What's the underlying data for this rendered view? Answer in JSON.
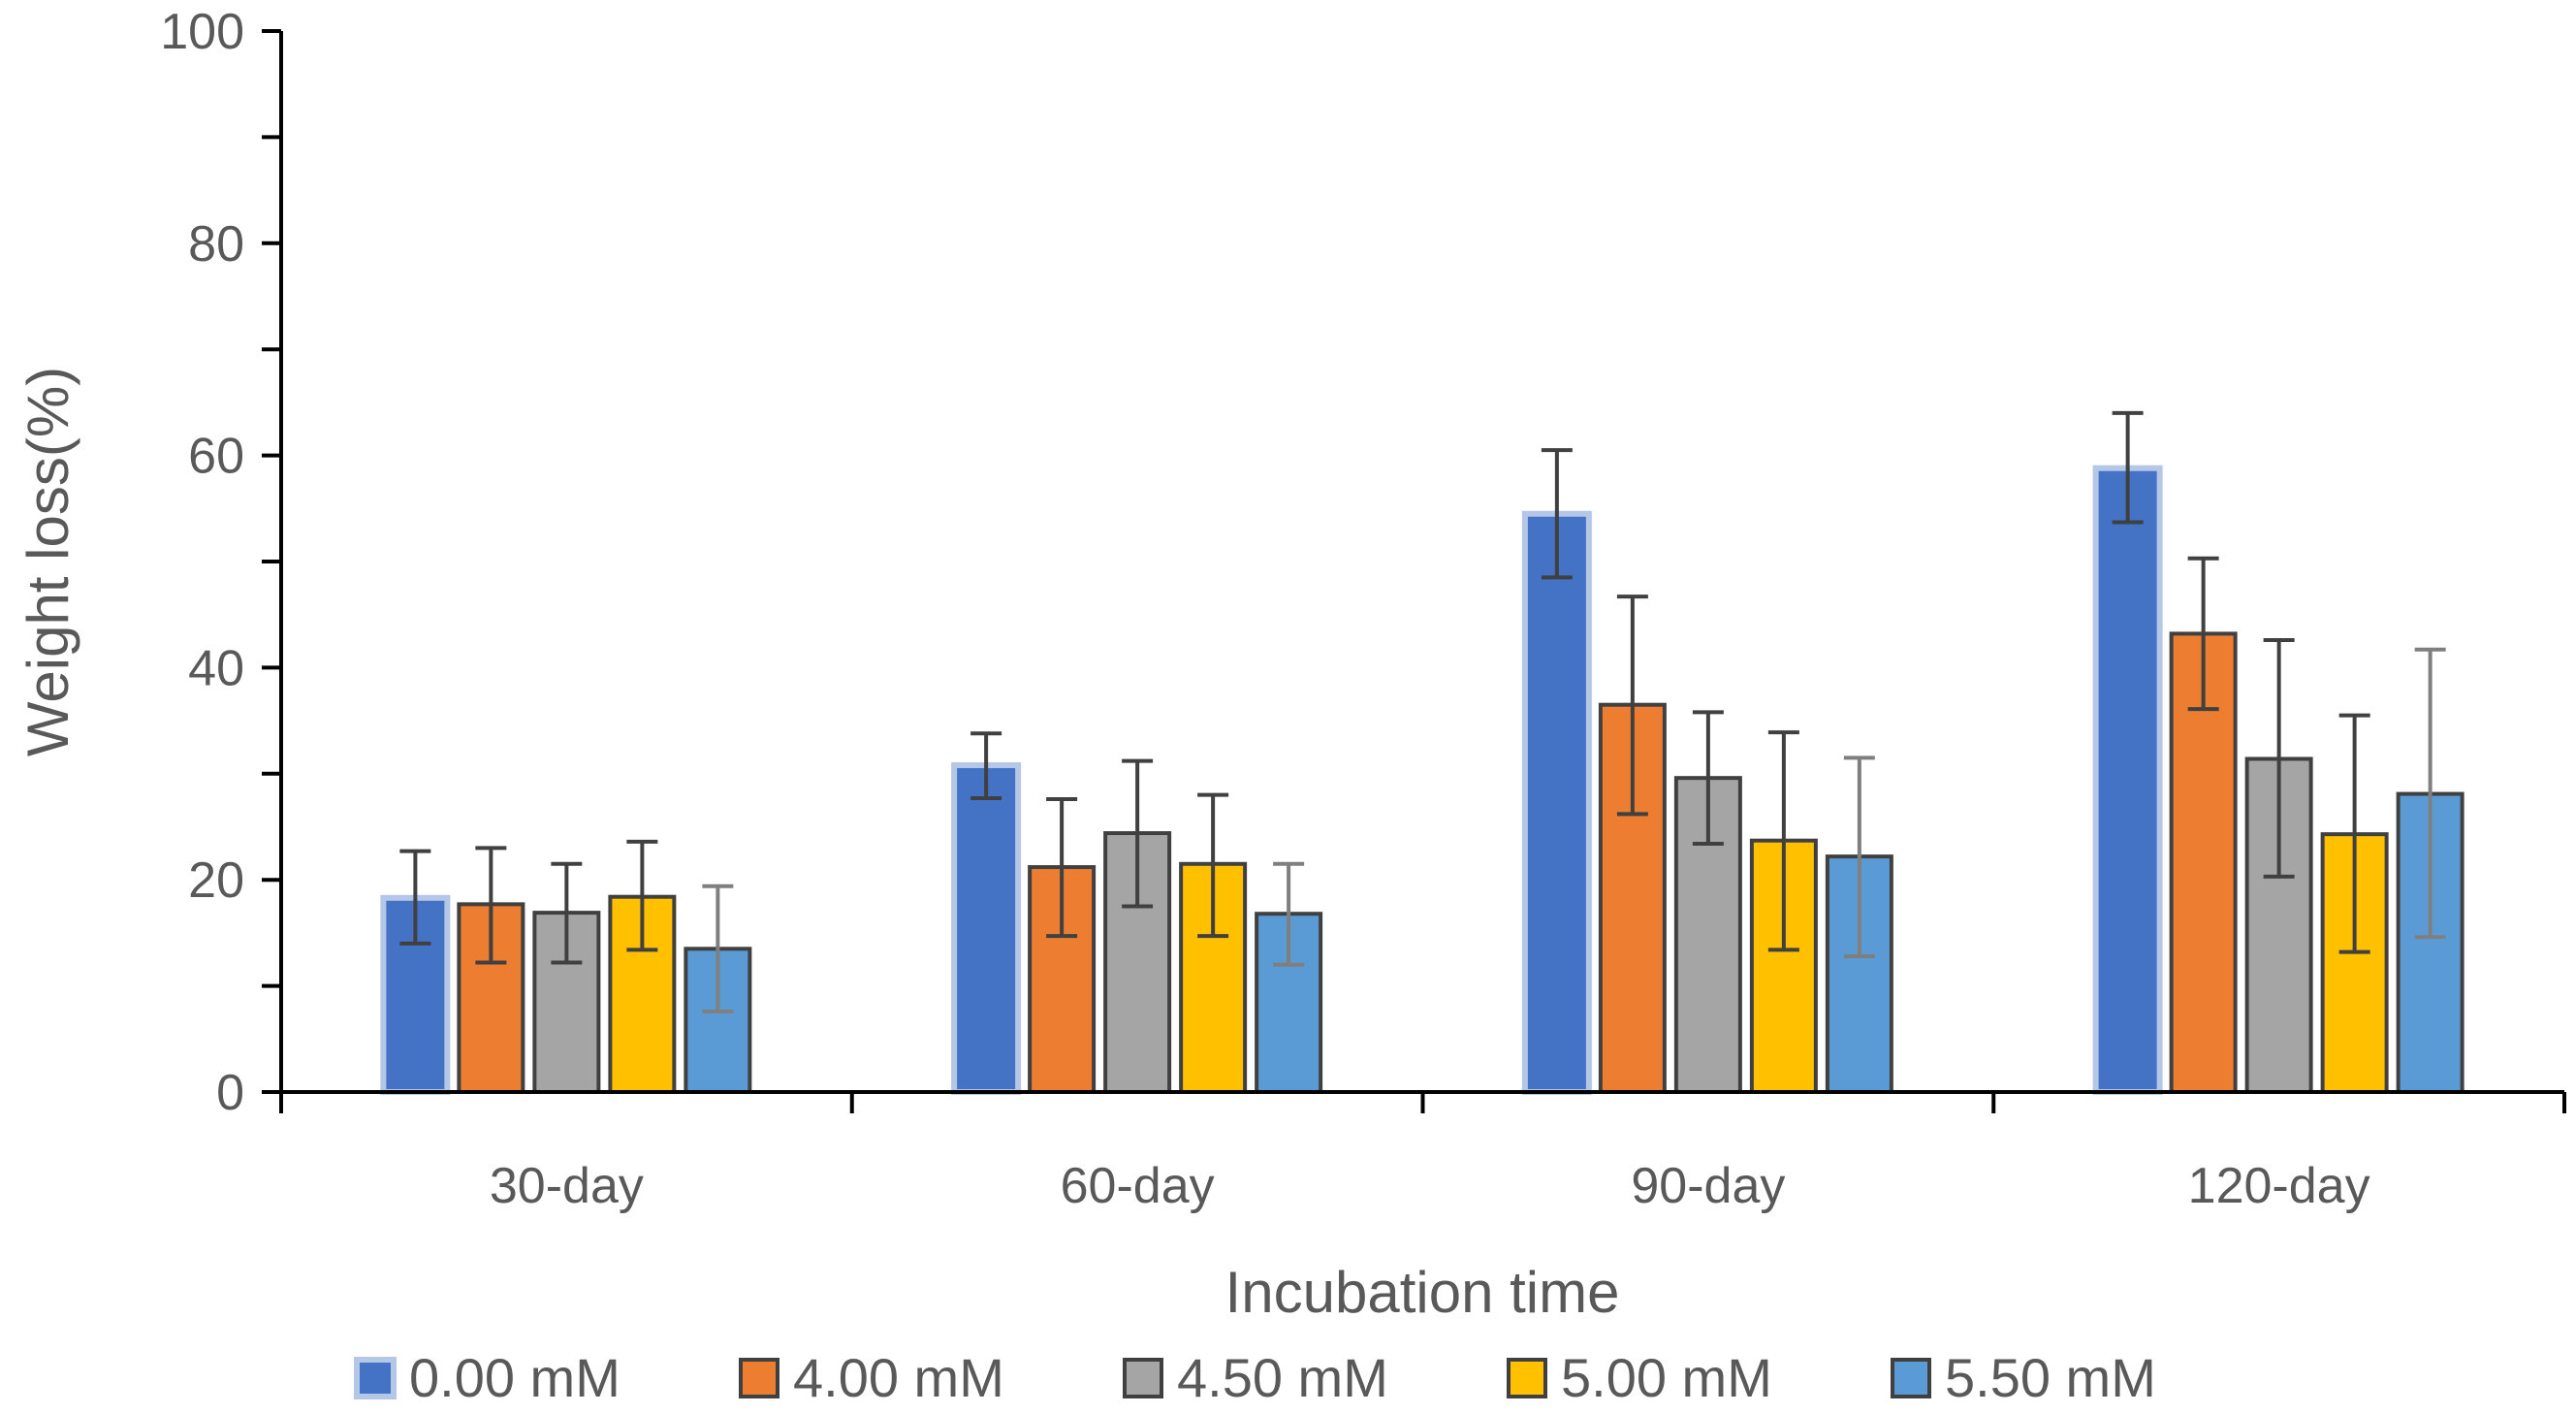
{
  "chart_data": {
    "type": "bar",
    "title": "",
    "xlabel": "Incubation time",
    "ylabel": "Weight loss(%)",
    "ylim": [
      0,
      100
    ],
    "yticks": [
      0,
      20,
      40,
      60,
      80,
      100
    ],
    "ytick_labels": [
      "0",
      "20",
      "40",
      "60",
      "80",
      "100"
    ],
    "minor_tick_step": 10,
    "grid": false,
    "legend_position": "bottom",
    "error_bars": true,
    "categories": [
      "30-day",
      "60-day",
      "90-day",
      "120-day"
    ],
    "series": [
      {
        "name": "0.00 mM",
        "color": "#4472C4",
        "edge": "#B4C7E7",
        "values": [
          18.3,
          30.8,
          54.5,
          58.8
        ],
        "lower": [
          14.0,
          27.7,
          48.5,
          53.7
        ],
        "upper": [
          22.7,
          33.8,
          60.5,
          64.0
        ]
      },
      {
        "name": "4.00 mM",
        "color": "#ED7D31",
        "edge": "#404040",
        "values": [
          17.7,
          21.2,
          36.5,
          43.2
        ],
        "lower": [
          12.2,
          14.7,
          26.2,
          36.1
        ],
        "upper": [
          23.0,
          27.6,
          46.7,
          50.3
        ]
      },
      {
        "name": "4.50 mM",
        "color": "#A5A5A5",
        "edge": "#404040",
        "values": [
          16.9,
          24.4,
          29.6,
          31.4
        ],
        "lower": [
          12.2,
          17.5,
          23.4,
          20.3
        ],
        "upper": [
          21.5,
          31.2,
          35.8,
          42.6
        ]
      },
      {
        "name": "5.00 mM",
        "color": "#FFC000",
        "edge": "#404040",
        "values": [
          18.4,
          21.5,
          23.7,
          24.3
        ],
        "lower": [
          13.4,
          14.7,
          13.4,
          13.2
        ],
        "upper": [
          23.6,
          28.0,
          33.9,
          35.5
        ]
      },
      {
        "name": "5.50 mM",
        "color": "#5B9BD5",
        "edge": "#404040",
        "values": [
          13.5,
          16.8,
          22.2,
          28.1
        ],
        "lower": [
          7.6,
          12.0,
          12.8,
          14.6
        ],
        "upper": [
          19.4,
          21.5,
          31.5,
          41.7
        ]
      }
    ]
  }
}
